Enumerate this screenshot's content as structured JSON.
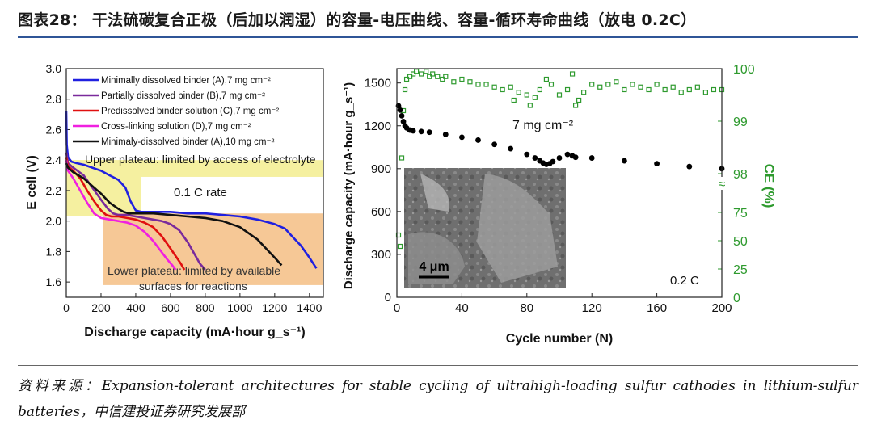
{
  "header": {
    "title": "图表28：  干法硫碳复合正极（后加以润湿）的容量-电压曲线、容量-循环寿命曲线（放电 0.2C）"
  },
  "source": {
    "text": "资料来源：Expansion-tolerant architectures for stable cycling of ultrahigh-loading sulfur cathodes in lithium-sulfur batteries，中信建投证券研究发展部"
  },
  "chart_data": [
    {
      "type": "line",
      "title": "",
      "xlabel": "Discharge capacity (mA·hour g_s⁻¹)",
      "ylabel": "E cell (V)",
      "xlim": [
        0,
        1480
      ],
      "ylim": [
        1.5,
        3.0
      ],
      "xticks": [
        0,
        200,
        400,
        600,
        800,
        1000,
        1200,
        1400
      ],
      "yticks": [
        1.6,
        1.8,
        2.0,
        2.2,
        2.4,
        2.6,
        2.8,
        3.0
      ],
      "xtick_labels": [
        "0",
        "200",
        "400",
        "600",
        "800",
        "1000",
        "1200",
        "1400"
      ],
      "ytick_labels": [
        "1.6",
        "1.8",
        "2.0",
        "2.2",
        "2.4",
        "2.6",
        "2.8",
        "3.0"
      ],
      "annotations": {
        "upper_plateau": "Upper plateau: limited by access of electrolyte",
        "rate": "0.1 C rate",
        "lower_plateau_line1": "Lower plateau: limited by available",
        "lower_plateau_line2": "surfaces for reactions"
      },
      "regions": [
        {
          "name": "upper-plateau",
          "color": "#f5f0a0",
          "x_range": [
            0,
            1480
          ],
          "y_range": [
            2.29,
            2.4
          ]
        },
        {
          "name": "upper-plateau-left",
          "color": "#f5f0a0",
          "x_range": [
            0,
            430
          ],
          "y_range": [
            2.03,
            2.4
          ]
        },
        {
          "name": "lower-plateau",
          "color": "#f6c896",
          "x_range": [
            210,
            1480
          ],
          "y_range": [
            1.58,
            2.05
          ]
        }
      ],
      "series": [
        {
          "name": "Minimally dissolved binder (A),7 mg cm⁻²",
          "color": "#2020e0",
          "x": [
            0,
            3,
            10,
            30,
            60,
            100,
            150,
            200,
            250,
            300,
            340,
            370,
            400,
            430,
            500,
            600,
            700,
            800,
            900,
            1000,
            1100,
            1200,
            1260,
            1300,
            1350,
            1400,
            1440
          ],
          "y": [
            2.72,
            2.5,
            2.42,
            2.39,
            2.38,
            2.37,
            2.35,
            2.33,
            2.3,
            2.27,
            2.22,
            2.13,
            2.07,
            2.06,
            2.06,
            2.06,
            2.05,
            2.05,
            2.04,
            2.03,
            2.01,
            1.98,
            1.95,
            1.9,
            1.84,
            1.76,
            1.69
          ]
        },
        {
          "name": "Partially dissolved binder (B),7 mg cm⁻²",
          "color": "#7a2a9c",
          "x": [
            0,
            10,
            40,
            100,
            150,
            200,
            240,
            270,
            300,
            350,
            400,
            450,
            500,
            550,
            600,
            650,
            700,
            740,
            770,
            800
          ],
          "y": [
            2.45,
            2.38,
            2.35,
            2.3,
            2.22,
            2.14,
            2.08,
            2.05,
            2.04,
            2.04,
            2.03,
            2.02,
            2.01,
            2.0,
            1.98,
            1.94,
            1.86,
            1.78,
            1.72,
            1.68
          ]
        },
        {
          "name": "Predissolved binder solution (C),7 mg cm⁻²",
          "color": "#e01010",
          "x": [
            0,
            10,
            40,
            80,
            120,
            160,
            200,
            230,
            260,
            300,
            350,
            400,
            450,
            500,
            550,
            600,
            630,
            660,
            680
          ],
          "y": [
            2.42,
            2.36,
            2.33,
            2.28,
            2.2,
            2.13,
            2.07,
            2.04,
            2.03,
            2.03,
            2.02,
            2.01,
            1.99,
            1.96,
            1.9,
            1.82,
            1.77,
            1.72,
            1.68
          ]
        },
        {
          "name": "Cross-linking solution (D),7 mg cm⁻²",
          "color": "#f020e0",
          "x": [
            0,
            10,
            40,
            80,
            120,
            160,
            200,
            250,
            300,
            350,
            400,
            450,
            500,
            540,
            580,
            610,
            630
          ],
          "y": [
            2.4,
            2.33,
            2.28,
            2.2,
            2.12,
            2.05,
            2.02,
            2.01,
            2.0,
            1.99,
            1.97,
            1.93,
            1.87,
            1.81,
            1.75,
            1.71,
            1.68
          ]
        },
        {
          "name": "Minimaly-dissolved binder (A),10 mg cm⁻²",
          "color": "#111111",
          "x": [
            0,
            10,
            40,
            100,
            150,
            200,
            250,
            300,
            330,
            360,
            400,
            450,
            500,
            600,
            700,
            800,
            900,
            1000,
            1100,
            1150,
            1200,
            1240
          ],
          "y": [
            2.38,
            2.35,
            2.32,
            2.28,
            2.23,
            2.18,
            2.12,
            2.08,
            2.06,
            2.05,
            2.05,
            2.05,
            2.05,
            2.04,
            2.03,
            2.02,
            2.0,
            1.96,
            1.88,
            1.82,
            1.76,
            1.71
          ]
        }
      ]
    },
    {
      "type": "scatter",
      "title": "",
      "xlabel": "Cycle number (N)",
      "ylabel": "Discharge capacity (mA·hour g_s⁻¹)",
      "ylabel_right": "CE (%)",
      "xlim": [
        0,
        200
      ],
      "ylim": [
        0,
        1600
      ],
      "xticks": [
        0,
        40,
        80,
        120,
        160,
        200
      ],
      "xtick_labels": [
        "0",
        "40",
        "80",
        "120",
        "160",
        "200"
      ],
      "yticks": [
        0,
        300,
        600,
        900,
        1200,
        1500
      ],
      "ytick_labels": [
        "0",
        "300",
        "600",
        "900",
        "1200",
        "1500"
      ],
      "right_axis_lower": {
        "range": [
          0,
          100
        ],
        "ticks": [
          0,
          25,
          50,
          75
        ],
        "tick_labels": [
          "0",
          "25",
          "50",
          "75"
        ]
      },
      "right_axis_upper": {
        "range": [
          97.8,
          100
        ],
        "ticks": [
          98,
          99,
          100
        ],
        "tick_labels": [
          "98",
          "99",
          "100"
        ]
      },
      "axis_break_label": "≈",
      "annotations": {
        "loading": "7 mg cm⁻²",
        "rate": "0.2 C",
        "scale_bar": "4 μm"
      },
      "inset": "SEM micrograph",
      "series": [
        {
          "name": "Discharge capacity",
          "color": "#000000",
          "axis": "left",
          "x": [
            1,
            2,
            3,
            4,
            5,
            6,
            8,
            10,
            15,
            20,
            30,
            40,
            50,
            60,
            70,
            80,
            85,
            88,
            90,
            92,
            94,
            96,
            100,
            105,
            108,
            110,
            120,
            140,
            160,
            180,
            200
          ],
          "y": [
            1340,
            1310,
            1270,
            1230,
            1200,
            1185,
            1170,
            1165,
            1160,
            1155,
            1140,
            1120,
            1100,
            1070,
            1040,
            1000,
            975,
            955,
            940,
            930,
            935,
            950,
            975,
            1000,
            990,
            980,
            975,
            955,
            935,
            915,
            900
          ]
        },
        {
          "name": "Coulombic efficiency",
          "color": "#2e9a2e",
          "axis": "right",
          "x": [
            1,
            2,
            3,
            4,
            5,
            6,
            8,
            10,
            12,
            15,
            18,
            20,
            22,
            25,
            28,
            30,
            35,
            40,
            45,
            50,
            55,
            60,
            65,
            70,
            72,
            75,
            80,
            82,
            85,
            88,
            90,
            92,
            95,
            100,
            105,
            108,
            110,
            112,
            115,
            120,
            125,
            130,
            135,
            140,
            145,
            150,
            155,
            160,
            165,
            170,
            175,
            180,
            185,
            190,
            195,
            200
          ],
          "y": [
            55,
            45,
            98.3,
            99.2,
            99.6,
            99.8,
            99.85,
            99.9,
            99.95,
            99.9,
            99.95,
            99.85,
            99.9,
            99.85,
            99.8,
            99.85,
            99.75,
            99.8,
            99.75,
            99.7,
            99.7,
            99.65,
            99.6,
            99.65,
            99.4,
            99.55,
            99.5,
            99.3,
            99.45,
            99.6,
            98.05,
            99.8,
            99.7,
            99.5,
            99.6,
            99.9,
            99.3,
            99.4,
            99.55,
            99.7,
            99.65,
            99.7,
            99.75,
            99.6,
            99.7,
            99.65,
            99.6,
            99.7,
            99.6,
            99.65,
            99.55,
            99.6,
            99.65,
            99.55,
            99.6,
            99.6
          ]
        }
      ]
    }
  ]
}
